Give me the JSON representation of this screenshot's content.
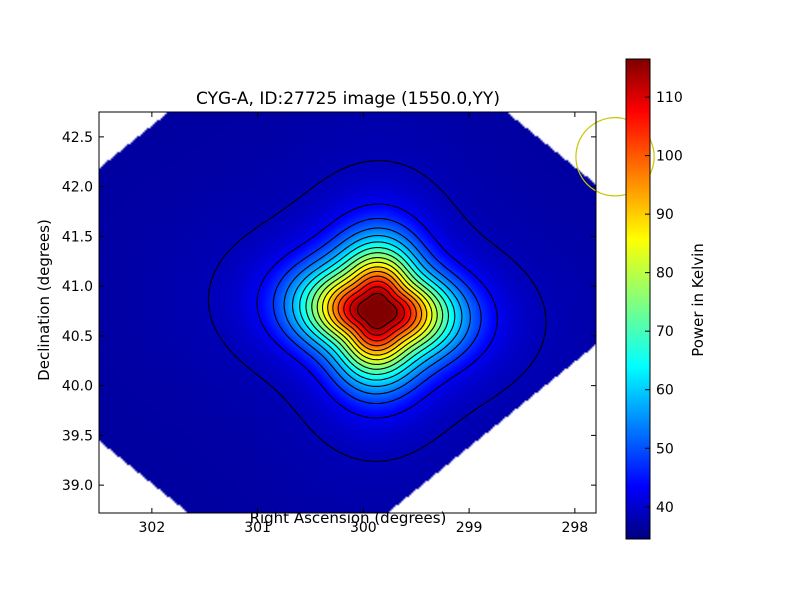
{
  "chart_data": {
    "type": "heatmap",
    "title": "CYG-A, ID:27725 image (1550.0,YY)",
    "xlabel": "Right Ascension (degrees)",
    "ylabel": "Declination (degrees)",
    "xlim": [
      302.5,
      297.8
    ],
    "ylim": [
      38.72,
      42.75
    ],
    "x_ticks": [
      {
        "value": 302,
        "label": "302"
      },
      {
        "value": 301,
        "label": "301"
      },
      {
        "value": 300,
        "label": "300"
      },
      {
        "value": 299,
        "label": "299"
      },
      {
        "value": 298,
        "label": "298"
      }
    ],
    "y_ticks": [
      {
        "value": 39.0,
        "label": "39.0"
      },
      {
        "value": 39.5,
        "label": "39.5"
      },
      {
        "value": 40.0,
        "label": "40.0"
      },
      {
        "value": 40.5,
        "label": "40.5"
      },
      {
        "value": 41.0,
        "label": "41.0"
      },
      {
        "value": 41.5,
        "label": "41.5"
      },
      {
        "value": 42.0,
        "label": "42.0"
      },
      {
        "value": 42.5,
        "label": "42.5"
      }
    ],
    "colorbar": {
      "label": "Power in Kelvin",
      "colormap": "jet",
      "range": [
        34.5,
        116.5
      ],
      "ticks": [
        {
          "value": 40,
          "label": "40"
        },
        {
          "value": 50,
          "label": "50"
        },
        {
          "value": 60,
          "label": "60"
        },
        {
          "value": 70,
          "label": "70"
        },
        {
          "value": 80,
          "label": "80"
        },
        {
          "value": 90,
          "label": "90"
        },
        {
          "value": 100,
          "label": "100"
        },
        {
          "value": 110,
          "label": "110"
        }
      ]
    },
    "source_peak": {
      "ra": 299.87,
      "dec": 40.75,
      "value": 116
    },
    "background_value": 37,
    "contour_levels": [
      39,
      44,
      49,
      54,
      59,
      64,
      69,
      74,
      79,
      84,
      89,
      94,
      99,
      104,
      109,
      114
    ],
    "beam_circle": {
      "ra": 297.62,
      "dec": 42.3,
      "radius_deg": 0.37,
      "color": "#c8c800"
    },
    "grid": false
  }
}
